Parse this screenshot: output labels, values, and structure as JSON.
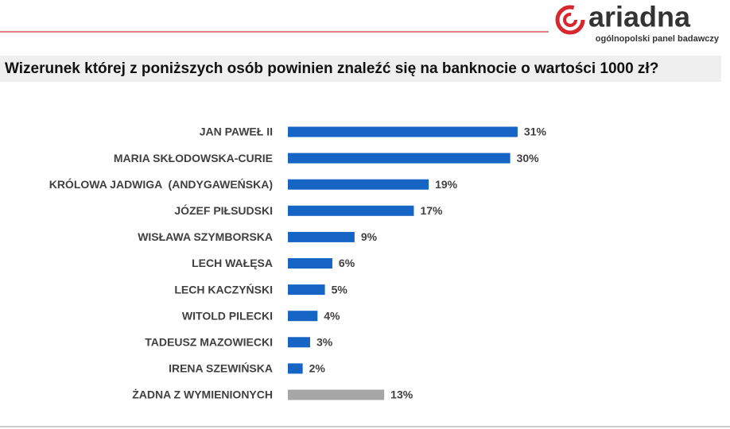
{
  "header": {
    "logo": "ariadna",
    "tagline": "ogólnopolski panel badawczy"
  },
  "chart_data": {
    "type": "bar",
    "orientation": "horizontal",
    "title": "Wizerunek której z poniższych osób powinien znaleźć się na banknocie o wartości 1000 zł?",
    "categories": [
      "JAN PAWEŁ II",
      "MARIA SKŁODOWSKA-CURIE",
      "KRÓLOWA JADWIGA  (ANDYGAWEŃSKA)",
      "JÓZEF PIŁSUDSKI",
      "WISŁAWA SZYMBORSKA",
      "LECH WAŁĘSA",
      "LECH KACZYŃSKI",
      "WITOLD PILECKI",
      "TADEUSZ MAZOWIECKI",
      "IRENA SZEWIŃSKA",
      "ŻADNA Z WYMIENIONYCH"
    ],
    "values": [
      31,
      30,
      19,
      17,
      9,
      6,
      5,
      4,
      3,
      2,
      13
    ],
    "value_labels": [
      "31%",
      "30%",
      "19%",
      "17%",
      "9%",
      "6%",
      "5%",
      "4%",
      "3%",
      "2%",
      "13%"
    ],
    "colors": [
      "#1664c4",
      "#1664c4",
      "#1664c4",
      "#1664c4",
      "#1664c4",
      "#1664c4",
      "#1664c4",
      "#1664c4",
      "#1664c4",
      "#1664c4",
      "#a6a6a6"
    ]
  }
}
